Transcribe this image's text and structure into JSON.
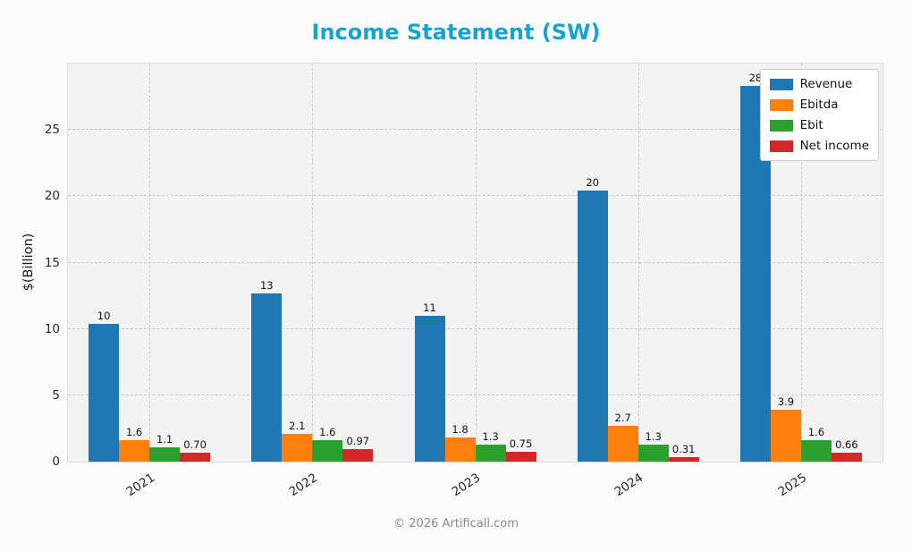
{
  "title": "Income Statement (SW)",
  "footer": "© 2026 Artificall.com",
  "colors": {
    "title": "#17a3cf",
    "plot_background": "#f2f2f2",
    "gridline": "#c8c8c8"
  },
  "chart_data": {
    "type": "bar",
    "title": "Income Statement (SW)",
    "xlabel": "",
    "ylabel": "$(Billion)",
    "categories": [
      "2021",
      "2022",
      "2023",
      "2024",
      "2025"
    ],
    "series": [
      {
        "name": "Revenue",
        "color": "#1f77b4",
        "values": [
          10.4,
          12.7,
          11.0,
          20.4,
          28.3
        ],
        "labels": [
          "10",
          "13",
          "11",
          "20",
          "28"
        ]
      },
      {
        "name": "Ebitda",
        "color": "#ff7f0e",
        "values": [
          1.6,
          2.1,
          1.8,
          2.7,
          3.9
        ],
        "labels": [
          "1.6",
          "2.1",
          "1.8",
          "2.7",
          "3.9"
        ]
      },
      {
        "name": "Ebit",
        "color": "#2ca02c",
        "values": [
          1.1,
          1.6,
          1.3,
          1.3,
          1.6
        ],
        "labels": [
          "1.1",
          "1.6",
          "1.3",
          "1.3",
          "1.6"
        ]
      },
      {
        "name": "Net income",
        "color": "#d62728",
        "values": [
          0.7,
          0.97,
          0.75,
          0.31,
          0.66
        ],
        "labels": [
          "0.70",
          "0.97",
          "0.75",
          "0.31",
          "0.66"
        ]
      }
    ],
    "yticks": [
      0,
      5,
      10,
      15,
      20,
      25
    ],
    "ylim": [
      0,
      30
    ],
    "grid": true,
    "grid_style": "dashed",
    "legend_position": "top-right",
    "bar_value_labels": true
  }
}
